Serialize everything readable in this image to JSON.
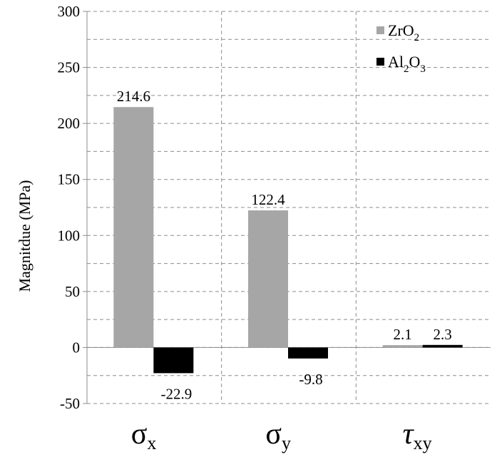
{
  "chart_data": {
    "type": "bar",
    "categories": [
      {
        "symbol": "σ",
        "sub": "x"
      },
      {
        "symbol": "σ",
        "sub": "y"
      },
      {
        "symbol": "τ",
        "sub": "xy"
      }
    ],
    "series": [
      {
        "name_base": "ZrO",
        "name_sub": "2",
        "values": [
          214.6,
          122.4,
          2.1
        ],
        "color": "#a6a6a6"
      },
      {
        "name_base": "Al",
        "name_sub": "2",
        "name_mid": "O",
        "name_sub2": "3",
        "values": [
          -22.9,
          -9.8,
          2.3
        ],
        "color": "#000000"
      }
    ],
    "value_labels": [
      [
        "214.6",
        "122.4",
        "2.1"
      ],
      [
        "-22.9",
        "-9.8",
        "2.3"
      ]
    ],
    "ylabel": "Magnitdue (MPa)",
    "ylim": [
      -50,
      300
    ],
    "yticks": [
      -50,
      0,
      50,
      100,
      150,
      200,
      250,
      300
    ],
    "ytick_labels": [
      "-50",
      "0",
      "50",
      "100",
      "150",
      "200",
      "250",
      "300"
    ],
    "grid": true,
    "legend_position": "top-right"
  }
}
